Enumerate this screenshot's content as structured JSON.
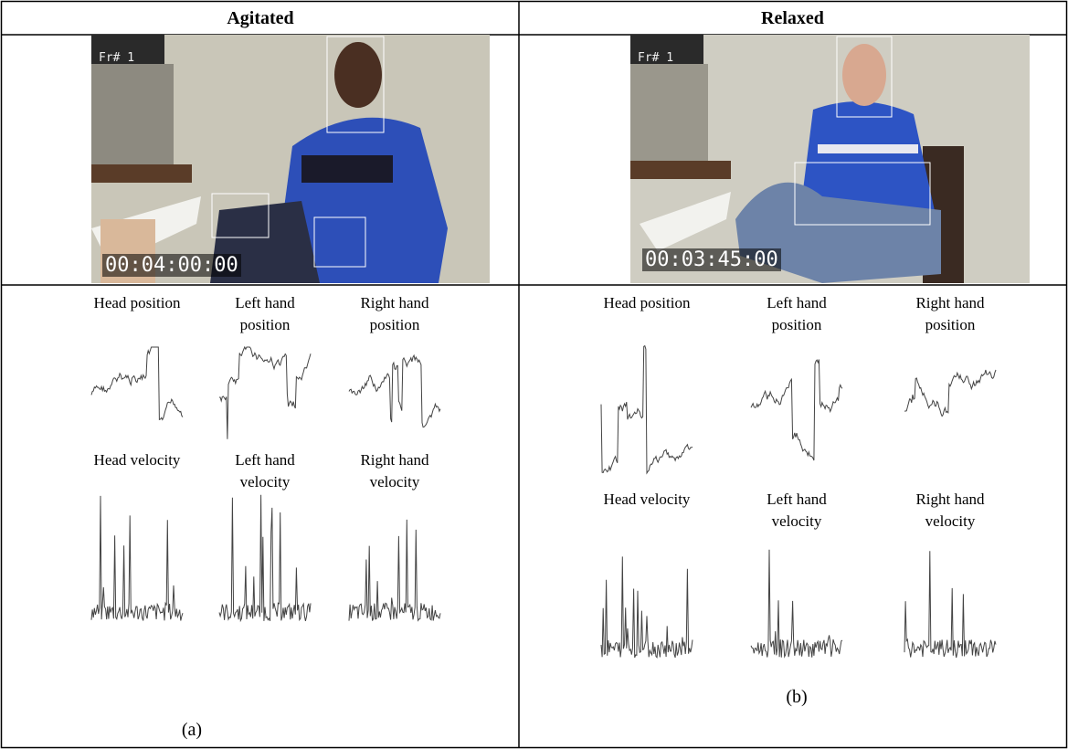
{
  "table": {
    "headers": [
      "Agitated",
      "Relaxed"
    ],
    "panels": [
      {
        "frame_label": "Fr# 1",
        "timecode": "00:04:00:00",
        "plots": [
          "Head position",
          "Left hand position",
          "Right hand position",
          "Head velocity",
          "Left hand velocity",
          "Right hand velocity"
        ],
        "caption": "(a)"
      },
      {
        "frame_label": "Fr# 1",
        "timecode": "00:03:45:00",
        "plots": [
          "Head position",
          "Left hand position",
          "Right hand position",
          "Head velocity",
          "Left hand velocity",
          "Right hand velocity"
        ],
        "caption": "(b)"
      }
    ]
  }
}
